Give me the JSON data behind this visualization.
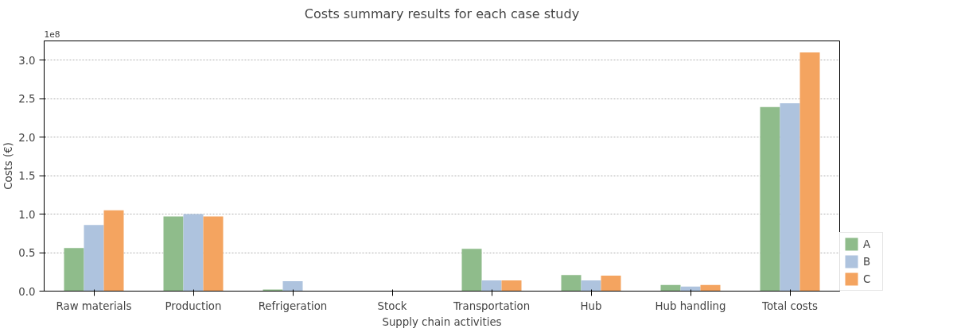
{
  "chart_data": {
    "type": "bar",
    "title": "Costs summary results for each case study",
    "xlabel": "Supply chain activities",
    "ylabel": "Costs (€)",
    "categories": [
      "Raw materials",
      "Production",
      "Refrigeration",
      "Stock",
      "Transportation",
      "Hub",
      "Hub handling",
      "Total costs"
    ],
    "series": [
      {
        "name": "A",
        "color": "#8fbc8b",
        "values": [
          0.56,
          0.97,
          0.02,
          0,
          0.55,
          0.21,
          0.08,
          2.39
        ]
      },
      {
        "name": "B",
        "color": "#aec3de",
        "values": [
          0.86,
          1.0,
          0.13,
          0,
          0.14,
          0.14,
          0.06,
          2.44
        ]
      },
      {
        "name": "C",
        "color": "#f4a460",
        "values": [
          1.05,
          0.97,
          0,
          0,
          0.14,
          0.2,
          0.08,
          3.1
        ]
      }
    ],
    "ylim": [
      0,
      3.25
    ],
    "yticks": [
      {
        "value": 0,
        "label": "0.0"
      },
      {
        "value": 0.5,
        "label": "0.5"
      },
      {
        "value": 1,
        "label": "1.0"
      },
      {
        "value": 1.5,
        "label": "1.5"
      },
      {
        "value": 2,
        "label": "2.0"
      },
      {
        "value": 2.5,
        "label": "2.5"
      },
      {
        "value": 3,
        "label": "3.0"
      }
    ],
    "annotations": [
      "1e8"
    ],
    "grid": "y",
    "legend": "bottom right"
  }
}
